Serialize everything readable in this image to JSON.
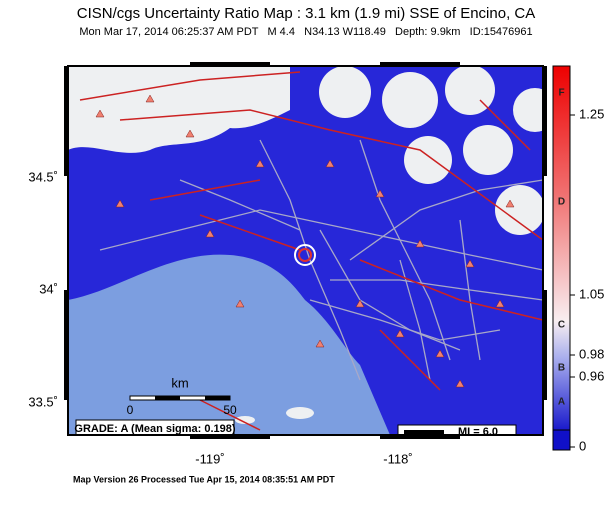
{
  "header": {
    "title": "CISN/cgs Uncertainty Ratio Map : 3.1 km (1.9 mi) SSE of Encino, CA",
    "subtitle": "Mon Mar 17, 2014 06:25:37 AM PDT   M 4.4   N34.13 W118.49   Depth: 9.9km   ID:15476961"
  },
  "map": {
    "lat_labels": [
      "34.5˚",
      "34˚",
      "33.5˚"
    ],
    "lon_labels": [
      "-119˚",
      "-118˚"
    ],
    "scale_bar": {
      "unit": "km",
      "labels": [
        "0",
        "50"
      ]
    },
    "grade": "GRADE: A (Mean sigma: 0.198)",
    "mi_legend": "MI = 6.0"
  },
  "colorbar": {
    "ticks": [
      "1.25",
      "1.05",
      "0.98",
      "0.96",
      "0"
    ],
    "letters": [
      "F",
      "D",
      "C",
      "B",
      "A"
    ]
  },
  "footer": "Map Version 26 Processed Tue Apr 15, 2014 08:35:51 AM PDT"
}
